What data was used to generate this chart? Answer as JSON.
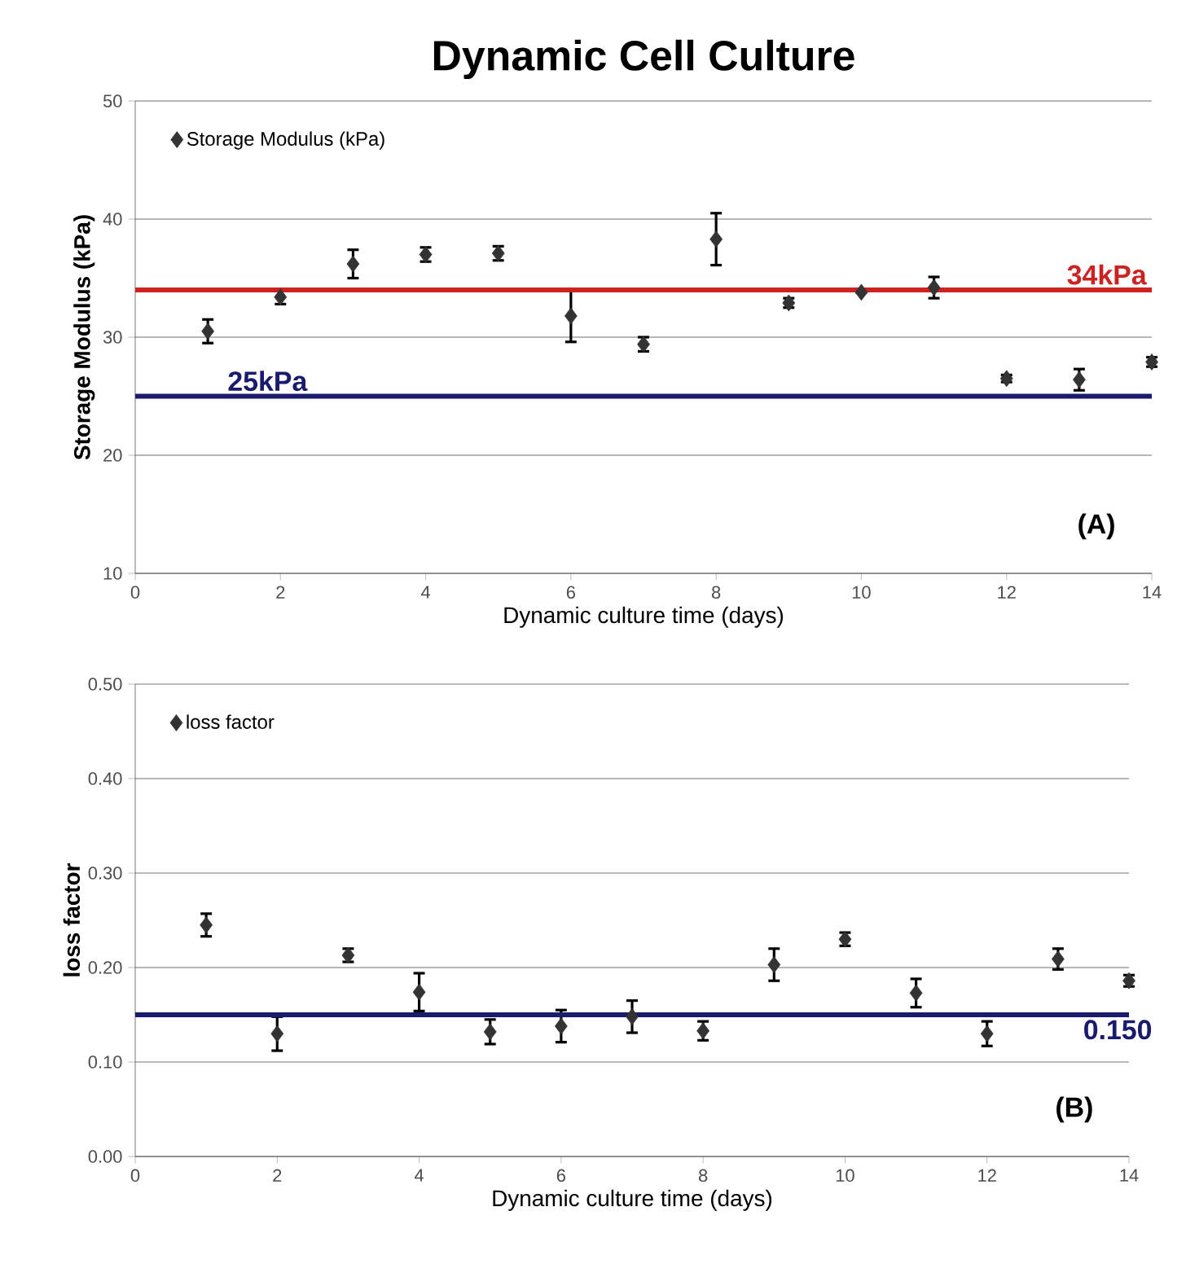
{
  "chart_data": [
    {
      "type": "scatter",
      "title": "Dynamic Cell Culture",
      "xlabel": "Dynamic culture time (days)",
      "ylabel": "Storage Modulus (kPa)",
      "x": [
        1,
        2,
        3,
        4,
        5,
        6,
        7,
        8,
        9,
        10,
        11,
        12,
        13,
        14
      ],
      "series": [
        {
          "name": "Storage Modulus (kPa)",
          "color": "#333333",
          "values": [
            30.5,
            33.4,
            36.2,
            37.0,
            37.1,
            31.8,
            29.4,
            38.3,
            32.9,
            33.8,
            34.2,
            26.5,
            26.4,
            27.9
          ],
          "errors": [
            1.0,
            0.6,
            1.2,
            0.6,
            0.6,
            2.2,
            0.6,
            2.2,
            0.4,
            null,
            0.9,
            0.3,
            0.9,
            0.4
          ]
        }
      ],
      "xlim": [
        0,
        14
      ],
      "xticks": [
        0,
        2,
        4,
        6,
        8,
        10,
        12,
        14
      ],
      "ylim": [
        10,
        50
      ],
      "yticks": [
        10,
        20,
        30,
        40,
        50
      ],
      "ref_lines": [
        {
          "axis": "y",
          "value": 34,
          "label": "34kPa",
          "color": "#cc2222"
        },
        {
          "axis": "y",
          "value": 25,
          "label": "25kPa",
          "color": "#1a1a6e"
        }
      ],
      "annotations": [
        "(A)"
      ],
      "grid": "y",
      "legend": "top left",
      "marker": "diamond"
    },
    {
      "type": "scatter",
      "xlabel": "Dynamic culture time (days)",
      "ylabel": "loss factor",
      "x": [
        1,
        2,
        3,
        4,
        5,
        6,
        7,
        8,
        9,
        10,
        11,
        12,
        13,
        14
      ],
      "series": [
        {
          "name": "loss factor",
          "color": "#333333",
          "values": [
            0.245,
            0.13,
            0.213,
            0.174,
            0.132,
            0.138,
            0.148,
            0.133,
            0.203,
            0.23,
            0.173,
            0.13,
            0.209,
            0.186
          ],
          "errors": [
            0.012,
            0.018,
            0.007,
            0.02,
            0.013,
            0.017,
            0.017,
            0.01,
            0.017,
            0.007,
            0.015,
            0.013,
            0.011,
            0.006
          ]
        }
      ],
      "xlim": [
        0,
        14
      ],
      "xticks": [
        0,
        2,
        4,
        6,
        8,
        10,
        12,
        14
      ],
      "ylim": [
        0,
        0.5
      ],
      "yticks": [
        {
          "value": 0,
          "label": "0.00"
        },
        {
          "value": 0.1,
          "label": "0.10"
        },
        {
          "value": 0.2,
          "label": "0.20"
        },
        {
          "value": 0.3,
          "label": "0.30"
        },
        {
          "value": 0.4,
          "label": "0.40"
        },
        {
          "value": 0.5,
          "label": "0.50"
        }
      ],
      "ref_lines": [
        {
          "axis": "y",
          "value": 0.15,
          "label": "0.150",
          "color": "#1a1a6e"
        }
      ],
      "annotations": [
        "(B)"
      ],
      "grid": "y",
      "legend": "top left",
      "marker": "diamond"
    }
  ]
}
